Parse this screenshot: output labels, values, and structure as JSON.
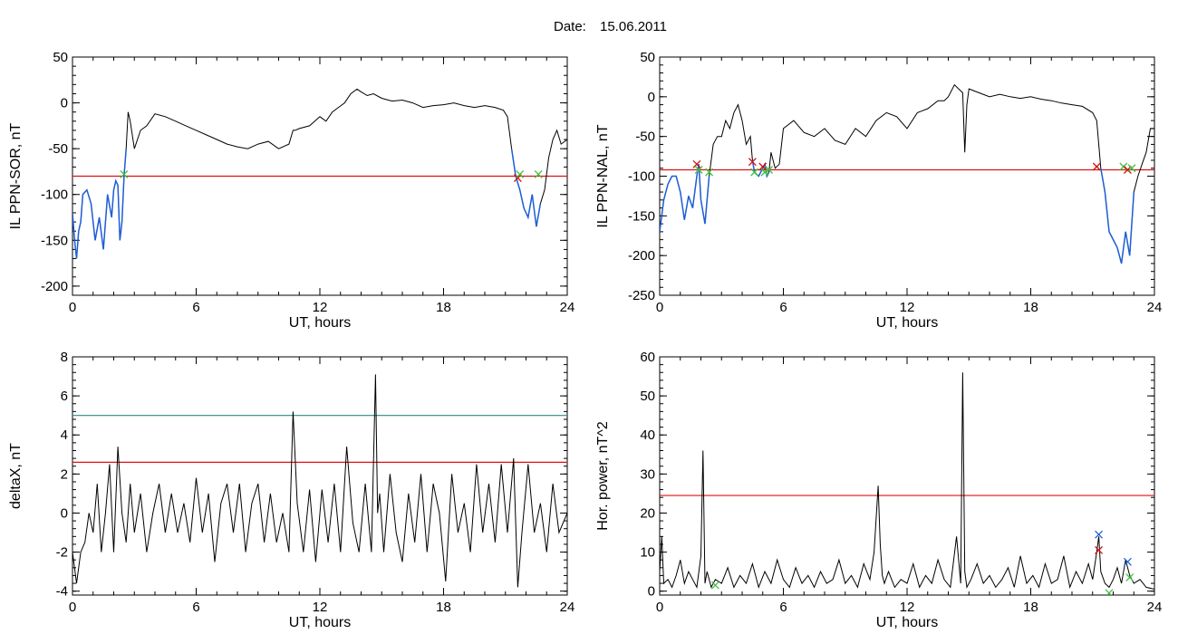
{
  "header": {
    "date_label": "Date:",
    "date_value": "15.06.2011"
  },
  "colors": {
    "trace": "#000000",
    "highlight": "#1f5fd6",
    "threshold_red": "#e01010",
    "threshold_teal": "#2a8a8a",
    "marker_red": "#cc1010",
    "marker_green": "#40c040",
    "marker_blue": "#2060d0"
  },
  "chart_data": [
    {
      "id": "sor",
      "type": "line",
      "ylabel": "IL PPN-SOR, nT",
      "xlabel": "UT, hours",
      "xlim": [
        0,
        24
      ],
      "ylim": [
        -210,
        50
      ],
      "xticks": [
        "0",
        "6",
        "12",
        "18",
        "24"
      ],
      "yticks": [
        "50",
        "0",
        "-50",
        "-100",
        "-150",
        "-200"
      ],
      "ytick_values": [
        50,
        0,
        -50,
        -100,
        -150,
        -200
      ],
      "threshold": -80,
      "series": [
        {
          "x": [
            0,
            0.1,
            0.2,
            0.3,
            0.4,
            0.5,
            0.7,
            0.9,
            1.1,
            1.3,
            1.5,
            1.7,
            1.9,
            2.0,
            2.1,
            2.2,
            2.3,
            2.4,
            2.5,
            2.6,
            2.7,
            2.8,
            3.0,
            3.3,
            3.6,
            4.0,
            4.5,
            5.0,
            5.5,
            6.0,
            6.5,
            7.0,
            7.5,
            8.0,
            8.5,
            9.0,
            9.5,
            10.0,
            10.5,
            10.7,
            10.8,
            11.0,
            11.5,
            12.0,
            12.3,
            12.6,
            12.9,
            13.2,
            13.5,
            13.8,
            14.0,
            14.3,
            14.6,
            15.0,
            15.5,
            16.0,
            16.5,
            17.0,
            17.5,
            18.0,
            18.5,
            19.0,
            19.5,
            20.0,
            20.5,
            20.9,
            21.1,
            21.3,
            21.5,
            21.7,
            21.9,
            22.1,
            22.3,
            22.5,
            22.7,
            22.9,
            23.1,
            23.3,
            23.5,
            23.7,
            24.0
          ],
          "y": [
            -120,
            -150,
            -170,
            -140,
            -130,
            -100,
            -95,
            -110,
            -150,
            -125,
            -160,
            -100,
            -125,
            -95,
            -85,
            -90,
            -150,
            -130,
            -80,
            -50,
            -10,
            -20,
            -50,
            -30,
            -25,
            -12,
            -15,
            -20,
            -25,
            -30,
            -35,
            -40,
            -45,
            -48,
            -50,
            -45,
            -42,
            -50,
            -45,
            -30,
            -30,
            -28,
            -25,
            -15,
            -20,
            -10,
            -5,
            0,
            10,
            15,
            12,
            8,
            10,
            5,
            2,
            3,
            0,
            -5,
            -3,
            -2,
            0,
            -3,
            -5,
            -3,
            -5,
            -8,
            -15,
            -50,
            -80,
            -95,
            -115,
            -125,
            -100,
            -135,
            -110,
            -95,
            -60,
            -40,
            -30,
            -45,
            -40
          ]
        }
      ],
      "highlight_ranges": [
        [
          0,
          2.6
        ],
        [
          21.3,
          22.7
        ]
      ],
      "markers": [
        {
          "x": 2.5,
          "y": -78,
          "color": "green"
        },
        {
          "x": 21.6,
          "y": -82,
          "color": "red"
        },
        {
          "x": 21.7,
          "y": -78,
          "color": "green"
        },
        {
          "x": 22.6,
          "y": -78,
          "color": "green"
        }
      ]
    },
    {
      "id": "nal",
      "type": "line",
      "ylabel": "IL PPN-NAL, nT",
      "xlabel": "UT, hours",
      "xlim": [
        0,
        24
      ],
      "ylim": [
        -250,
        50
      ],
      "xticks": [
        "0",
        "6",
        "12",
        "18",
        "24"
      ],
      "yticks": [
        "50",
        "0",
        "-50",
        "-100",
        "-150",
        "-200",
        "-250"
      ],
      "ytick_values": [
        50,
        0,
        -50,
        -100,
        -150,
        -200,
        -250
      ],
      "threshold": -92,
      "series": [
        {
          "x": [
            0,
            0.2,
            0.4,
            0.6,
            0.8,
            1.0,
            1.2,
            1.4,
            1.6,
            1.8,
            1.9,
            2.0,
            2.2,
            2.4,
            2.6,
            2.8,
            3.0,
            3.2,
            3.4,
            3.6,
            3.8,
            4.0,
            4.2,
            4.4,
            4.5,
            4.6,
            4.8,
            5.0,
            5.1,
            5.2,
            5.3,
            5.4,
            5.6,
            5.8,
            6.0,
            6.5,
            7.0,
            7.5,
            8.0,
            8.5,
            9.0,
            9.5,
            10.0,
            10.5,
            11.0,
            11.5,
            12.0,
            12.5,
            13.0,
            13.5,
            13.8,
            14.0,
            14.3,
            14.5,
            14.7,
            14.8,
            14.9,
            15.0,
            15.5,
            16.0,
            16.5,
            17.0,
            17.5,
            18.0,
            18.5,
            19.0,
            19.5,
            20.0,
            20.5,
            21.0,
            21.2,
            21.4,
            21.6,
            21.8,
            22.0,
            22.2,
            22.4,
            22.6,
            22.8,
            23.0,
            23.2,
            23.4,
            23.6,
            23.8,
            24.0
          ],
          "y": [
            -170,
            -130,
            -110,
            -100,
            -100,
            -120,
            -155,
            -125,
            -140,
            -100,
            -85,
            -130,
            -160,
            -100,
            -60,
            -50,
            -50,
            -30,
            -40,
            -20,
            -10,
            -30,
            -60,
            -50,
            -80,
            -95,
            -100,
            -90,
            -85,
            -100,
            -95,
            -70,
            -90,
            -85,
            -40,
            -30,
            -45,
            -50,
            -40,
            -55,
            -60,
            -40,
            -50,
            -30,
            -20,
            -25,
            -40,
            -20,
            -15,
            -5,
            -5,
            0,
            15,
            10,
            5,
            -70,
            -10,
            10,
            5,
            0,
            3,
            0,
            -2,
            0,
            -3,
            -5,
            -8,
            -10,
            -12,
            -20,
            -30,
            -90,
            -120,
            -170,
            -180,
            -190,
            -210,
            -170,
            -200,
            -120,
            -100,
            -85,
            -70,
            -40,
            -40
          ]
        }
      ],
      "highlight_ranges": [
        [
          0,
          2.4
        ],
        [
          4.5,
          5.3
        ],
        [
          21.4,
          23.0
        ]
      ],
      "markers": [
        {
          "x": 1.8,
          "y": -85,
          "color": "red"
        },
        {
          "x": 1.9,
          "y": -92,
          "color": "green"
        },
        {
          "x": 2.4,
          "y": -95,
          "color": "green"
        },
        {
          "x": 4.5,
          "y": -82,
          "color": "red"
        },
        {
          "x": 4.6,
          "y": -95,
          "color": "green"
        },
        {
          "x": 5.0,
          "y": -88,
          "color": "red"
        },
        {
          "x": 5.1,
          "y": -95,
          "color": "green"
        },
        {
          "x": 5.3,
          "y": -92,
          "color": "green"
        },
        {
          "x": 21.2,
          "y": -88,
          "color": "red"
        },
        {
          "x": 22.5,
          "y": -88,
          "color": "green"
        },
        {
          "x": 22.7,
          "y": -92,
          "color": "red"
        },
        {
          "x": 22.9,
          "y": -90,
          "color": "green"
        }
      ]
    },
    {
      "id": "deltax",
      "type": "line",
      "ylabel": "deltaX, nT",
      "xlabel": "UT, hours",
      "xlim": [
        0,
        24
      ],
      "ylim": [
        -4.2,
        8
      ],
      "xticks": [
        "0",
        "6",
        "12",
        "18",
        "24"
      ],
      "yticks": [
        "8",
        "6",
        "4",
        "2",
        "0",
        "-2",
        "-4"
      ],
      "ytick_values": [
        8,
        6,
        4,
        2,
        0,
        -2,
        -4
      ],
      "thresholds": [
        {
          "value": 2.6,
          "color": "red"
        },
        {
          "value": 5.0,
          "color": "teal"
        }
      ],
      "series": [
        {
          "x": [
            0,
            0.2,
            0.4,
            0.6,
            0.8,
            1.0,
            1.2,
            1.4,
            1.6,
            1.8,
            2.0,
            2.2,
            2.4,
            2.6,
            2.8,
            3.0,
            3.3,
            3.6,
            3.9,
            4.2,
            4.5,
            4.8,
            5.1,
            5.4,
            5.7,
            6.0,
            6.3,
            6.6,
            6.9,
            7.2,
            7.5,
            7.8,
            8.1,
            8.4,
            8.7,
            9.0,
            9.3,
            9.6,
            9.9,
            10.2,
            10.5,
            10.7,
            10.9,
            11.2,
            11.5,
            11.8,
            12.1,
            12.4,
            12.7,
            13.0,
            13.3,
            13.6,
            13.9,
            14.2,
            14.5,
            14.7,
            14.8,
            14.9,
            15.1,
            15.4,
            15.7,
            16.0,
            16.3,
            16.6,
            16.9,
            17.2,
            17.5,
            17.8,
            18.1,
            18.4,
            18.7,
            19.0,
            19.3,
            19.6,
            19.9,
            20.2,
            20.5,
            20.8,
            21.1,
            21.4,
            21.6,
            21.8,
            22.1,
            22.4,
            22.7,
            23.0,
            23.3,
            23.6,
            24.0
          ],
          "y": [
            -2,
            -3.6,
            -2,
            -1.5,
            0,
            -1,
            1.5,
            -2,
            0,
            2.5,
            -2,
            3.4,
            0,
            -1.5,
            1.5,
            -1,
            1,
            -2,
            0,
            1.5,
            -1,
            1,
            -1,
            0.5,
            -1.5,
            1.8,
            -1,
            1,
            -2.5,
            0.5,
            1.5,
            -1,
            1.5,
            -2,
            0.5,
            1.5,
            -1.5,
            1,
            -1.5,
            0,
            -2,
            5.2,
            0.5,
            -2,
            1.2,
            -2.5,
            1.2,
            -1.5,
            1.5,
            -2,
            3.4,
            -0.5,
            -2,
            1.5,
            -2,
            7.1,
            0,
            1,
            -2,
            2,
            -1,
            -2.5,
            1,
            -1.5,
            2,
            -2,
            1.5,
            0,
            -3.5,
            2,
            -1,
            0.5,
            -2,
            2.5,
            -1,
            1.5,
            -1.5,
            2.5,
            -1,
            2.8,
            -3.8,
            -1,
            2.5,
            -1,
            0.5,
            -2,
            1.5,
            -1,
            0
          ]
        }
      ]
    },
    {
      "id": "power",
      "type": "line",
      "ylabel": "Hor. power, nT^2",
      "xlabel": "UT, hours",
      "xlim": [
        0,
        24
      ],
      "ylim": [
        -1,
        60
      ],
      "xticks": [
        "0",
        "6",
        "12",
        "18",
        "24"
      ],
      "yticks": [
        "60",
        "50",
        "40",
        "30",
        "20",
        "10",
        "0"
      ],
      "ytick_values": [
        60,
        50,
        40,
        30,
        20,
        10,
        0
      ],
      "threshold": 24.5,
      "series": [
        {
          "x": [
            0,
            0.1,
            0.2,
            0.4,
            0.6,
            0.8,
            1.0,
            1.2,
            1.4,
            1.6,
            1.8,
            2.0,
            2.1,
            2.2,
            2.3,
            2.5,
            2.7,
            3.0,
            3.3,
            3.6,
            3.9,
            4.2,
            4.5,
            4.8,
            5.1,
            5.4,
            5.7,
            6.0,
            6.3,
            6.6,
            6.9,
            7.2,
            7.5,
            7.8,
            8.1,
            8.4,
            8.7,
            9.0,
            9.3,
            9.6,
            9.9,
            10.2,
            10.4,
            10.6,
            10.7,
            10.8,
            10.9,
            11.1,
            11.4,
            11.7,
            12.0,
            12.3,
            12.6,
            12.9,
            13.2,
            13.5,
            13.8,
            14.1,
            14.4,
            14.6,
            14.7,
            14.8,
            14.9,
            15.1,
            15.4,
            15.7,
            16.0,
            16.3,
            16.6,
            16.9,
            17.2,
            17.5,
            17.8,
            18.1,
            18.4,
            18.7,
            19.0,
            19.3,
            19.6,
            19.9,
            20.2,
            20.5,
            20.8,
            21.0,
            21.2,
            21.3,
            21.4,
            21.6,
            21.8,
            22.0,
            22.2,
            22.4,
            22.6,
            22.8,
            23.0,
            23.3,
            23.6,
            24.0
          ],
          "y": [
            5,
            14,
            2,
            3,
            1,
            4,
            8,
            2,
            5,
            3,
            1,
            9,
            36,
            2,
            5,
            1,
            3,
            2,
            6,
            1,
            4,
            2,
            7,
            1,
            5,
            2,
            8,
            3,
            1,
            6,
            2,
            4,
            1,
            5,
            2,
            3,
            8,
            2,
            4,
            1,
            7,
            3,
            10,
            27,
            12,
            4,
            2,
            5,
            1,
            3,
            2,
            7,
            1,
            4,
            2,
            8,
            3,
            1,
            14,
            2,
            56,
            5,
            1,
            3,
            7,
            2,
            4,
            1,
            3,
            6,
            1,
            9,
            2,
            4,
            1,
            7,
            2,
            3,
            9,
            1,
            5,
            2,
            7,
            3,
            10,
            14,
            5,
            2,
            1,
            3,
            6,
            2,
            8,
            4,
            2,
            3,
            1,
            0.5
          ]
        }
      ],
      "markers": [
        {
          "x": 21.3,
          "y": 14.5,
          "color": "blue"
        },
        {
          "x": 21.3,
          "y": 10.5,
          "color": "red"
        },
        {
          "x": 21.8,
          "y": -0.5,
          "color": "green"
        },
        {
          "x": 22.7,
          "y": 7.5,
          "color": "blue"
        },
        {
          "x": 22.8,
          "y": 3.5,
          "color": "green"
        },
        {
          "x": 2.7,
          "y": 1.5,
          "color": "green"
        }
      ]
    }
  ]
}
